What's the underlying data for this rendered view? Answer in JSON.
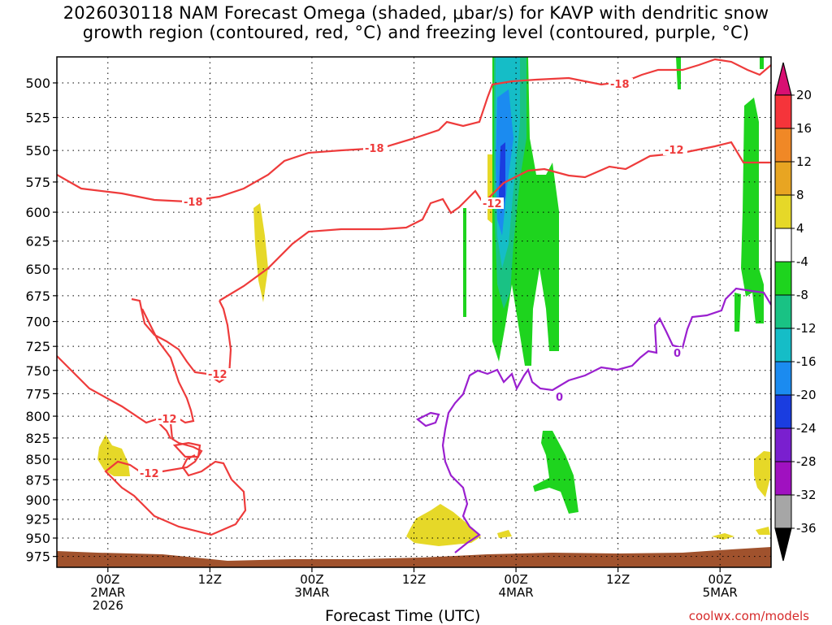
{
  "title": {
    "line1": "2026030118 NAM Forecast Omega (shaded, μbar/s) for KAVP with dendritic snow",
    "line2": "growth region (contoured, red, °C) and freezing level (contoured, purple, °C)"
  },
  "xlabel": "Forecast Time (UTC)",
  "credit": "coolwx.com/models",
  "chart_data": {
    "type": "heatmap",
    "x_axis": {
      "ticks": [
        {
          "hour": 0,
          "lines": [
            "00Z",
            "2MAR",
            "2026"
          ]
        },
        {
          "hour": 12,
          "lines": [
            "12Z"
          ]
        },
        {
          "hour": 24,
          "lines": [
            "00Z",
            "3MAR"
          ]
        },
        {
          "hour": 36,
          "lines": [
            "12Z"
          ]
        },
        {
          "hour": 48,
          "lines": [
            "00Z",
            "4MAR"
          ]
        },
        {
          "hour": 60,
          "lines": [
            "12Z"
          ]
        },
        {
          "hour": 72,
          "lines": [
            "00Z",
            "5MAR"
          ]
        }
      ],
      "range_hours": [
        -6,
        78
      ]
    },
    "y_axis": {
      "unit": "hPa",
      "ticks": [
        500,
        525,
        550,
        575,
        600,
        625,
        650,
        675,
        700,
        725,
        750,
        775,
        800,
        825,
        850,
        875,
        900,
        925,
        950,
        975
      ],
      "range": [
        482,
        990
      ],
      "scale": "log-pressure"
    },
    "colorbar": {
      "levels": [
        20,
        16,
        12,
        8,
        4,
        -4,
        -8,
        -12,
        -16,
        -20,
        -24,
        -28,
        -32,
        -36
      ],
      "colors": [
        "#d80f72",
        "#f5343a",
        "#f08826",
        "#e8a522",
        "#e6d828",
        "#ffffff",
        "#1ed41e",
        "#19c284",
        "#15bdc7",
        "#1b8bf0",
        "#1a3de0",
        "#7a1fcf",
        "#a011c0",
        "#a6a6a6",
        "#000000"
      ]
    },
    "contours": {
      "dendritic": {
        "color": "#ee3b3b",
        "labels": [
          "-18",
          "-18",
          "-18",
          "-12",
          "-12",
          "-12",
          "-12",
          "-12"
        ]
      },
      "freezing": {
        "color": "#9a1fcf",
        "labels": [
          "0",
          "0"
        ]
      }
    },
    "terrain_color": "#a0522d",
    "grid": true
  }
}
